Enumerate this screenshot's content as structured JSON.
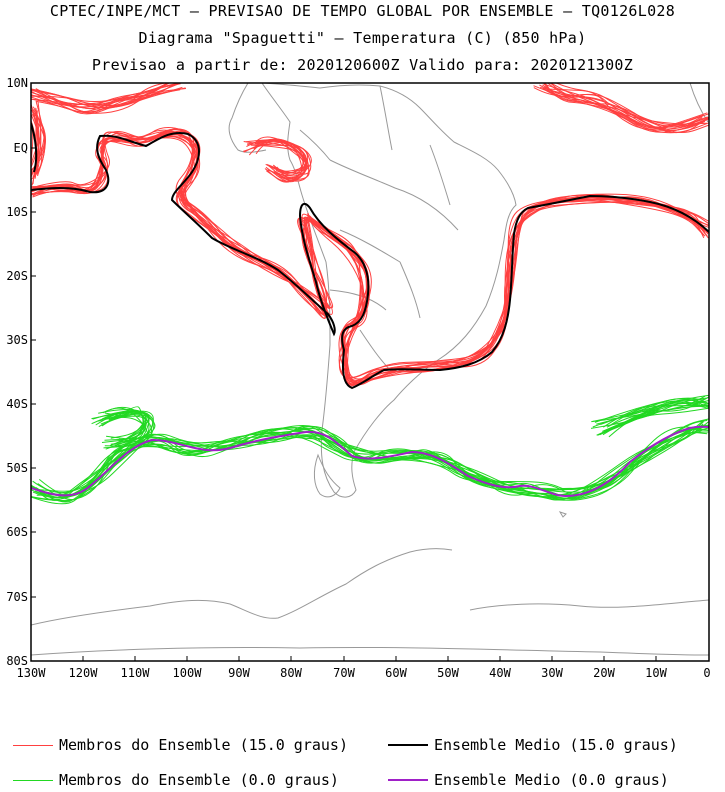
{
  "header": {
    "line1": "CPTEC/INPE/MCT – PREVISAO DE TEMPO GLOBAL POR ENSEMBLE – TQ0126L028",
    "line2": "Diagrama \"Spaguetti\" – Temperatura (C) (850 hPa)",
    "line3": "Previsao a partir de: 2020120600Z  Valido para: 2020121300Z"
  },
  "axes": {
    "lat_labels": [
      "10N",
      "EQ",
      "10S",
      "20S",
      "30S",
      "40S",
      "50S",
      "60S",
      "70S",
      "80S"
    ],
    "lon_labels": [
      "130W",
      "120W",
      "110W",
      "100W",
      "90W",
      "80W",
      "70W",
      "60W",
      "50W",
      "40W",
      "30W",
      "20W",
      "10W",
      "0"
    ]
  },
  "legend": {
    "members_15": "Membros do Ensemble (15.0 graus)",
    "mean_15": "Ensemble Medio (15.0 graus)",
    "members_0": "Membros do Ensemble (0.0 graus)",
    "mean_0": "Ensemble Medio (0.0 graus)"
  },
  "colors": {
    "members_15": "#ff4040",
    "mean_15": "#000000",
    "members_0": "#22d822",
    "mean_0": "#a020c8",
    "coast": "#999999"
  }
}
